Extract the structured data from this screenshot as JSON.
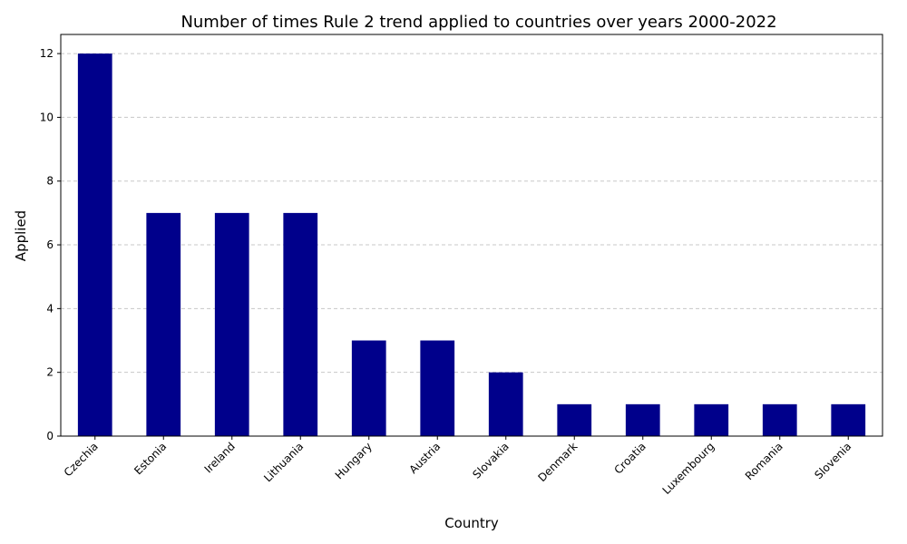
{
  "chart_data": {
    "type": "bar",
    "title": "Number of times Rule 2 trend applied to countries over years 2000-2022",
    "xlabel": "Country",
    "ylabel": "Applied",
    "categories": [
      "Czechia",
      "Estonia",
      "Ireland",
      "Lithuania",
      "Hungary",
      "Austria",
      "Slovakia",
      "Denmark",
      "Croatia",
      "Luxembourg",
      "Romania",
      "Slovenia"
    ],
    "values": [
      12,
      7,
      7,
      7,
      3,
      3,
      2,
      1,
      1,
      1,
      1,
      1
    ],
    "ylim": [
      0,
      12.6
    ],
    "yticks": [
      0,
      2,
      4,
      6,
      8,
      10,
      12
    ],
    "grid": "y-dashed",
    "bar_color": "#00008b",
    "grid_color": "#c8c8c8"
  }
}
